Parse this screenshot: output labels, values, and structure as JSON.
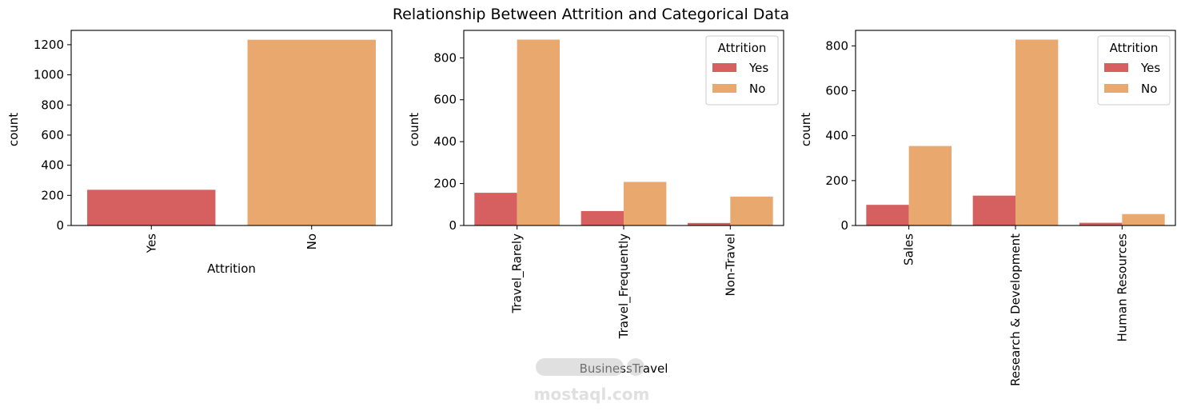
{
  "figure": {
    "suptitle": "Relationship Between Attrition and Categorical Data"
  },
  "colors": {
    "yes": "#d65f5f",
    "no": "#e8a86e",
    "axis": "#000000",
    "watermark": "#c8c8c8"
  },
  "watermark": {
    "text": "mostaql.com"
  },
  "chart_data": [
    {
      "type": "bar",
      "title": "",
      "xlabel": "Attrition",
      "ylabel": "count",
      "categories": [
        "Yes",
        "No"
      ],
      "values": [
        237,
        1233
      ],
      "bar_colors": [
        "#d65f5f",
        "#e8a86e"
      ],
      "ylim": [
        0,
        1295
      ],
      "yticks": [
        0,
        200,
        400,
        600,
        800,
        1000,
        1200
      ],
      "grid": false,
      "legend": null
    },
    {
      "type": "bar",
      "title": "",
      "xlabel": "BusinessTravel",
      "ylabel": "count",
      "categories": [
        "Travel_Rarely",
        "Travel_Frequently",
        "Non-Travel"
      ],
      "series": [
        {
          "name": "Yes",
          "values": [
            156,
            69,
            12
          ]
        },
        {
          "name": "No",
          "values": [
            887,
            208,
            138
          ]
        }
      ],
      "ylim": [
        0,
        931
      ],
      "yticks": [
        0,
        200,
        400,
        600,
        800
      ],
      "grid": false,
      "legend": {
        "title": "Attrition",
        "position": "top-right"
      }
    },
    {
      "type": "bar",
      "title": "",
      "xlabel": "",
      "ylabel": "count",
      "categories": [
        "Sales",
        "Research & Development",
        "Human Resources"
      ],
      "series": [
        {
          "name": "Yes",
          "values": [
            92,
            133,
            12
          ]
        },
        {
          "name": "No",
          "values": [
            354,
            828,
            51
          ]
        }
      ],
      "ylim": [
        0,
        869
      ],
      "yticks": [
        0,
        200,
        400,
        600,
        800
      ],
      "grid": false,
      "legend": {
        "title": "Attrition",
        "position": "top-right"
      }
    }
  ]
}
